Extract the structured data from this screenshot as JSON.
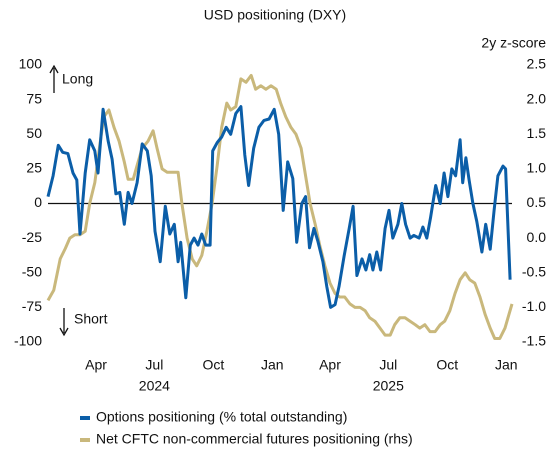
{
  "chart_data": {
    "type": "line",
    "title": "USD positioning (DXY)",
    "y2_label": "2y z-score",
    "annotations": [
      "Long",
      "Short"
    ],
    "xlim": [
      16,
      740
    ],
    "xticks": [
      {
        "value": 91,
        "label": "Apr"
      },
      {
        "value": 182,
        "label": "Jul"
      },
      {
        "value": 274,
        "label": "Oct"
      },
      {
        "value": 366,
        "label": "Jan"
      },
      {
        "value": 456,
        "label": "Apr"
      },
      {
        "value": 547,
        "label": "Jul"
      },
      {
        "value": 639,
        "label": "Oct"
      },
      {
        "value": 731,
        "label": "Jan"
      }
    ],
    "year_labels": [
      {
        "value": 182,
        "label": "2024"
      },
      {
        "value": 547,
        "label": "2025"
      }
    ],
    "ylim": [
      -100,
      100
    ],
    "yticks": [
      100,
      75,
      50,
      25,
      0,
      -25,
      -50,
      -75,
      -100
    ],
    "y2lim": [
      -1.5,
      2.5
    ],
    "y2ticks": [
      2.5,
      {
        "value": 2,
        "label": "2.0"
      },
      1.5,
      {
        "value": 1,
        "label": "1.0"
      },
      0.5,
      {
        "value": 0,
        "label": "0.0"
      },
      -0.5,
      {
        "value": -1,
        "label": "-1.0"
      },
      -1.5
    ],
    "zero_line": true,
    "series": [
      {
        "name": "Options positioning (% total outstanding)",
        "color": "#0b5ea8",
        "x": [
          16,
          24,
          32,
          39,
          47,
          55,
          61,
          66,
          74,
          81,
          89,
          94,
          102,
          110,
          116,
          122,
          128,
          135,
          141,
          147,
          155,
          163,
          171,
          177,
          183,
          191,
          199,
          206,
          213,
          219,
          223,
          231,
          238,
          244,
          250,
          256,
          262,
          269,
          273,
          280,
          287,
          294,
          301,
          309,
          317,
          323,
          329,
          337,
          345,
          353,
          361,
          369,
          376,
          383,
          390,
          398,
          404,
          412,
          418,
          424,
          431,
          437,
          445,
          451,
          457,
          464,
          470,
          478,
          486,
          492,
          498,
          506,
          512,
          518,
          523,
          529,
          535,
          542,
          548,
          554,
          562,
          568,
          574,
          581,
          587,
          595,
          601,
          607,
          613,
          621,
          628,
          634,
          640,
          646,
          652,
          659,
          663,
          668,
          673,
          679,
          685,
          693,
          699,
          706,
          712,
          718,
          726,
          730,
          737
        ],
        "values": [
          5,
          20,
          42,
          37,
          36,
          22,
          17,
          -22,
          22,
          46,
          38,
          22,
          68,
          45,
          32,
          7,
          8,
          -15,
          8,
          0,
          15,
          43,
          38,
          20,
          -20,
          -42,
          -2,
          -22,
          -15,
          -42,
          -28,
          -68,
          -30,
          -25,
          -30,
          -22,
          -30,
          -30,
          38,
          44,
          48,
          55,
          50,
          65,
          70,
          35,
          13,
          40,
          55,
          60,
          61,
          68,
          50,
          -5,
          30,
          18,
          -28,
          0,
          5,
          -32,
          -18,
          -27,
          -42,
          -60,
          -75,
          -73,
          -60,
          -38,
          -18,
          -2,
          -52,
          -40,
          -48,
          -37,
          -48,
          -35,
          -48,
          -18,
          -5,
          -25,
          -15,
          0,
          -15,
          -25,
          -23,
          -25,
          -17,
          -25,
          -10,
          13,
          0,
          22,
          5,
          25,
          20,
          46,
          15,
          33,
          17,
          0,
          -13,
          -35,
          -15,
          -33,
          -5,
          20,
          27,
          25,
          -55
        ]
      },
      {
        "name": "Net CFTC non-commercial futures positioning (rhs)",
        "color": "#c9b87c",
        "axis": "y2",
        "x": [
          16,
          25,
          35,
          43,
          50,
          58,
          66,
          74,
          81,
          89,
          97,
          103,
          111,
          119,
          127,
          135,
          141,
          149,
          155,
          163,
          172,
          180,
          186,
          194,
          202,
          209,
          219,
          225,
          233,
          241,
          248,
          256,
          264,
          272,
          280,
          287,
          295,
          301,
          309,
          317,
          325,
          333,
          340,
          348,
          356,
          364,
          372,
          379,
          387,
          395,
          403,
          411,
          417,
          425,
          433,
          440,
          448,
          456,
          464,
          471,
          479,
          487,
          495,
          503,
          511,
          518,
          526,
          534,
          542,
          550,
          557,
          565,
          573,
          581,
          589,
          596,
          604,
          612,
          620,
          628,
          635,
          643,
          651,
          659,
          667,
          674,
          682,
          690,
          698,
          706,
          713,
          721,
          729,
          740
        ],
        "values": [
          -0.9,
          -0.75,
          -0.3,
          -0.15,
          0,
          0.05,
          0.05,
          0.1,
          0.5,
          0.8,
          1.35,
          1.75,
          1.85,
          1.6,
          1.4,
          1.1,
          0.85,
          0.85,
          1.05,
          1.3,
          1.4,
          1.55,
          1.3,
          1,
          0.95,
          0.95,
          0.95,
          0.5,
          0,
          -0.3,
          -0.4,
          -0.25,
          0.1,
          0.5,
          1.05,
          1.6,
          1.95,
          1.85,
          1.9,
          2.3,
          2.25,
          2.35,
          2.15,
          2.2,
          2.15,
          2.2,
          2.15,
          1.95,
          1.75,
          1.6,
          1.5,
          1.3,
          0.95,
          0.5,
          0.2,
          -0.1,
          -0.4,
          -0.65,
          -0.8,
          -0.85,
          -0.85,
          -0.95,
          -1,
          -1,
          -1.05,
          -1.15,
          -1.2,
          -1.3,
          -1.4,
          -1.4,
          -1.25,
          -1.15,
          -1.15,
          -1.2,
          -1.25,
          -1.3,
          -1.25,
          -1.35,
          -1.35,
          -1.25,
          -1.2,
          -1.05,
          -0.8,
          -0.6,
          -0.5,
          -0.6,
          -0.65,
          -0.85,
          -1.1,
          -1.3,
          -1.45,
          -1.45,
          -1.3,
          -0.95
        ]
      }
    ]
  }
}
